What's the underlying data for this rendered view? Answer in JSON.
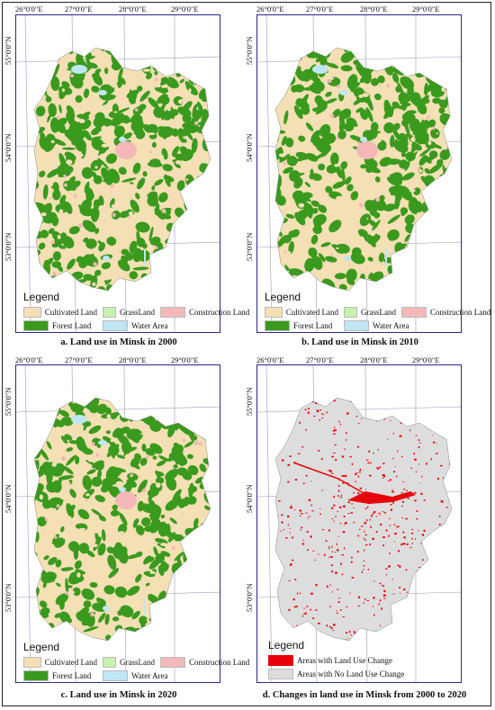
{
  "colors": {
    "cultivated": "#f5dfb4",
    "forest": "#3a9a1e",
    "grass": "#c8f0b0",
    "water": "#bfe6f2",
    "construction": "#f4b8b8",
    "change": "#e8000b",
    "nochange": "#dddddd",
    "frame": "#2a2a8a"
  },
  "longitude_labels": [
    "26°0'0\"E",
    "27°0'0\"E",
    "28°0'0\"E",
    "29°0'0\"E"
  ],
  "latitude_labels": [
    "55°0'0\"N",
    "54°0'0\"N",
    "53°0'0\"N"
  ],
  "landuse_legend": {
    "title": "Legend",
    "items": [
      "Cultivated Land",
      "GrassLand",
      "Construction Land",
      "Forest Land",
      "Water Area"
    ]
  },
  "change_legend": {
    "title": "Legend",
    "items": [
      "Areas with  Land Use Change",
      "Areas with No Land Use Change"
    ]
  },
  "panels": [
    {
      "caption": "a. Land use in Minsk in 2000",
      "type": "landuse"
    },
    {
      "caption": "b. Land use in Minsk in 2010",
      "type": "landuse"
    },
    {
      "caption": "c. Land use in Minsk in 2020",
      "type": "landuse"
    },
    {
      "caption": "d. Changes in land use in Minsk from 2000 to 2020",
      "type": "change"
    }
  ]
}
